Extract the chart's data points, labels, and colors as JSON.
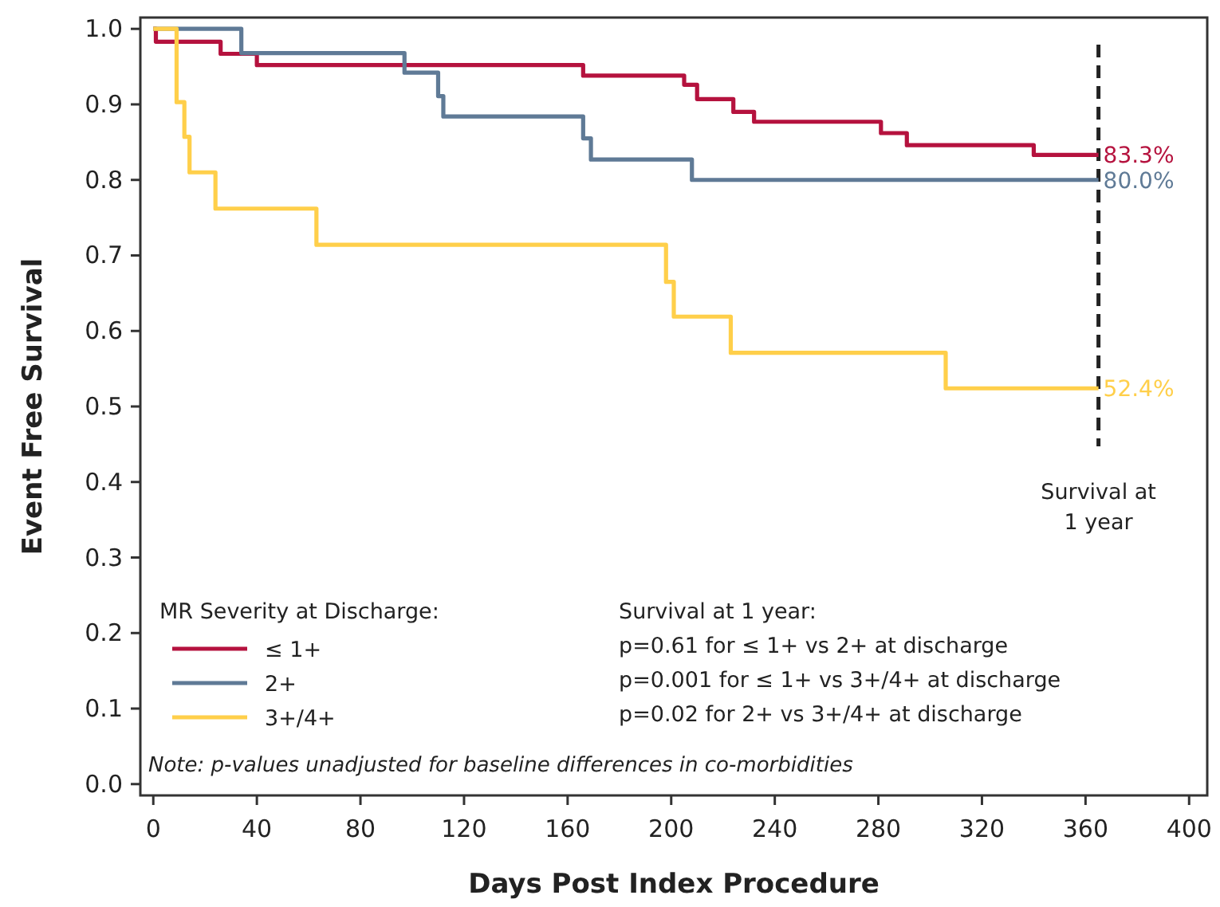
{
  "chart_data": {
    "type": "step",
    "xlabel": "Days Post Index Procedure",
    "ylabel": "Event Free Survival",
    "legend_title": "MR Severity at Discharge:",
    "legend": "bottom left",
    "grid": false,
    "marker": "none",
    "line_style": "solid",
    "xlim": [
      -5,
      407
    ],
    "ylim": [
      -0.015,
      1.015
    ],
    "xticks": [
      0,
      40,
      80,
      120,
      160,
      200,
      240,
      280,
      320,
      360,
      400
    ],
    "yticks": [
      {
        "value": 0,
        "label": "0.0"
      },
      {
        "value": 0.1,
        "label": "0.1"
      },
      {
        "value": 0.2,
        "label": "0.2"
      },
      {
        "value": 0.3,
        "label": "0.3"
      },
      {
        "value": 0.4,
        "label": "0.4"
      },
      {
        "value": 0.5,
        "label": "0.5"
      },
      {
        "value": 0.6,
        "label": "0.6"
      },
      {
        "value": 0.7,
        "label": "0.7"
      },
      {
        "value": 0.8,
        "label": "0.8"
      },
      {
        "value": 0.9,
        "label": "0.9"
      },
      {
        "value": 1,
        "label": "1.0"
      }
    ],
    "series": [
      {
        "name": "≤ 1+",
        "color": "#b5123e",
        "x": [
          0,
          1,
          26,
          40,
          166,
          205,
          210,
          224,
          232,
          281,
          291,
          340,
          365
        ],
        "values": [
          1,
          0.983,
          0.967,
          0.952,
          0.938,
          0.926,
          0.907,
          0.89,
          0.877,
          0.862,
          0.846,
          0.833,
          0.833
        ],
        "value_labels": [
          null,
          null,
          null,
          null,
          null,
          null,
          null,
          null,
          null,
          null,
          null,
          null,
          "83.3%"
        ]
      },
      {
        "name": "2+",
        "color": "#5f7a96",
        "x": [
          0,
          34,
          97,
          110,
          112,
          166,
          169,
          208,
          365
        ],
        "values": [
          1,
          0.968,
          0.942,
          0.911,
          0.884,
          0.855,
          0.827,
          0.8,
          0.8
        ],
        "value_labels": [
          null,
          null,
          null,
          null,
          null,
          null,
          null,
          null,
          "80.0%"
        ]
      },
      {
        "name": "3+/4+",
        "color": "#ffcf4a",
        "x": [
          0,
          9,
          12,
          14,
          24,
          63,
          198,
          201,
          223,
          306,
          365
        ],
        "values": [
          1,
          0.903,
          0.857,
          0.81,
          0.762,
          0.714,
          0.665,
          0.619,
          0.571,
          0.524,
          0.524
        ],
        "value_labels": [
          null,
          null,
          null,
          null,
          null,
          null,
          null,
          null,
          null,
          null,
          "52.4%"
        ]
      }
    ],
    "ref_lines": [
      {
        "axis": "x",
        "value": 365,
        "label": "Survival at 1 year",
        "color": "#222222",
        "line_style": "dashed"
      }
    ],
    "annotations": [
      "Survival at 1 year:",
      "p=0.61 for ≤ 1+ vs 2+ at discharge",
      "p=0.001 for ≤ 1+ vs 3+/4+ at discharge",
      "p=0.02 for 2+ vs 3+/4+ at discharge",
      "Note: p-values unadjusted for baseline differences in co-morbidities"
    ]
  }
}
